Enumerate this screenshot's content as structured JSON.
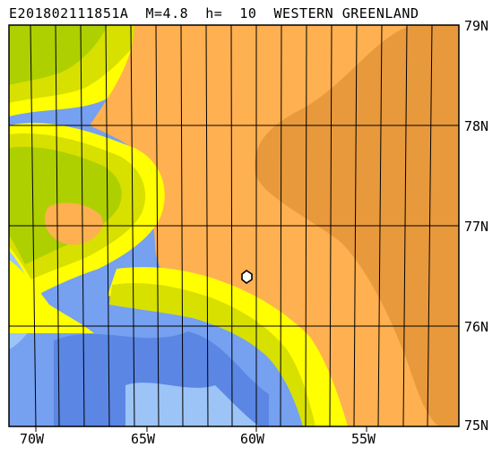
{
  "map": {
    "title": "E201802111851A  M=4.8  h=  10  WESTERN GREENLAND",
    "lat_labels": [
      "79N",
      "78N",
      "77N",
      "76N",
      "75N"
    ],
    "lon_labels": [
      "70W",
      "65W",
      "60W",
      "55W"
    ],
    "colors": {
      "deep_ocean": "#5b86e4",
      "ocean": "#76a0f0",
      "shelf": "#9cc4f6",
      "shallow": "#b6d8f8",
      "coast_band": "#ffff00",
      "lowland": "#d8e000",
      "hill": "#aed000",
      "ice": "#ffb050",
      "ice_high": "#e8993c",
      "grid": "#000000"
    }
  }
}
